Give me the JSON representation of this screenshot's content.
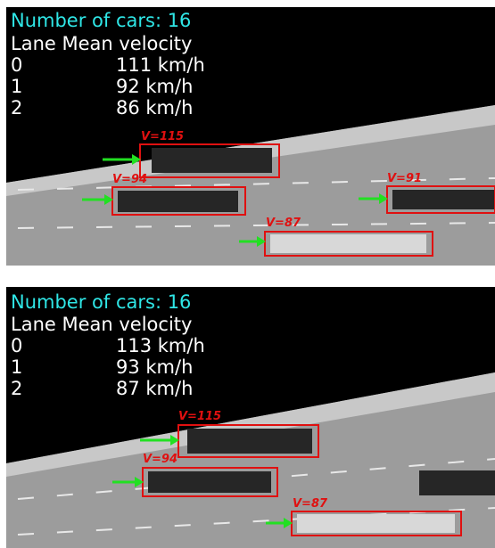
{
  "panels": [
    {
      "title": "Number of cars: 16",
      "header": "Lane Mean velocity",
      "rows": [
        [
          "0",
          "111 km/h"
        ],
        [
          "1",
          "92 km/h"
        ],
        [
          "2",
          "86 km/h"
        ]
      ],
      "detections": [
        "V=115",
        "V=94",
        "V=91",
        "V=87"
      ]
    },
    {
      "title": "Number of cars: 16",
      "header": "Lane Mean velocity",
      "rows": [
        [
          "0",
          "113 km/h"
        ],
        [
          "1",
          "93 km/h"
        ],
        [
          "2",
          "87 km/h"
        ]
      ],
      "detections": [
        "V=115",
        "V=94",
        "V=87"
      ]
    }
  ]
}
